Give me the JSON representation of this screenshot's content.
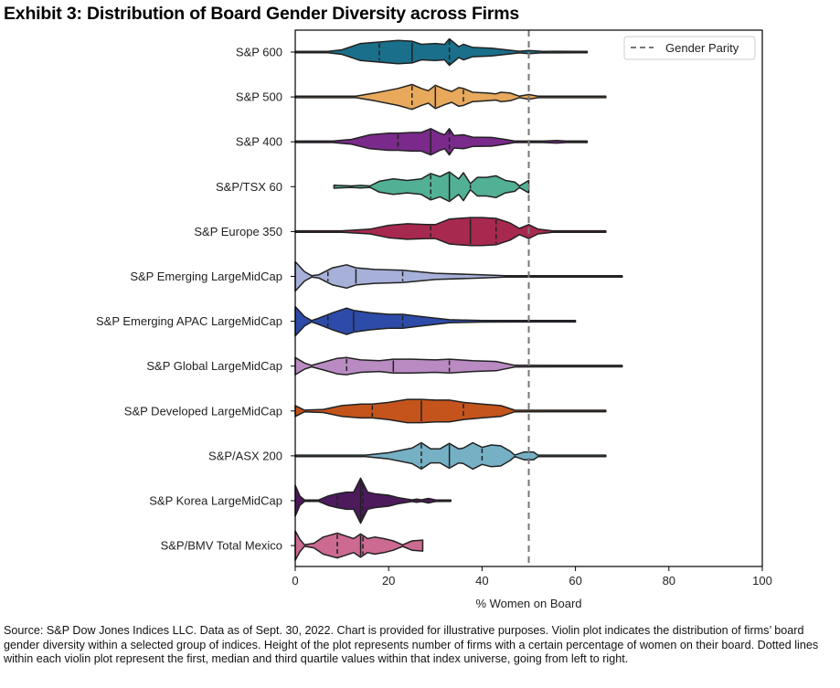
{
  "title": "Exhibit 3: Distribution of Board Gender Diversity across Firms",
  "caption": "Source: S&P Dow Jones Indices LLC. Data as of Sept. 30, 2022. Chart is provided for illustrative purposes. Violin plot indicates the distribution of firms’ board gender diversity within a selected group of indices. Height of the plot represents number of firms with a certain percentage of women on their board. Dotted lines within each violin plot represent the first, median and third quartile values within that index universe, going from left to right.",
  "chart_data": {
    "type": "violin",
    "title": "Exhibit 3: Distribution of Board Gender Diversity across Firms",
    "xlabel": "% Women on Board",
    "ylabel": "",
    "xlim": [
      0,
      100
    ],
    "xticks": [
      0,
      20,
      40,
      60,
      80,
      100
    ],
    "grid": false,
    "legend": {
      "position": "top-right",
      "entries": [
        {
          "label": "Gender Parity",
          "style": "dashed",
          "color": "#777777"
        }
      ]
    },
    "reference_line": {
      "label": "Gender Parity",
      "x": 50,
      "color": "#777777",
      "style": "dashed"
    },
    "series": [
      {
        "name": "S&P 600",
        "color": "#1a6f8a",
        "min": 0,
        "max": 62.5,
        "quartiles": [
          18,
          25,
          33
        ],
        "density": [
          [
            0,
            0.02
          ],
          [
            7,
            0.04
          ],
          [
            10,
            0.15
          ],
          [
            14,
            0.55
          ],
          [
            18,
            0.65
          ],
          [
            22,
            0.75
          ],
          [
            25,
            0.7
          ],
          [
            27,
            0.5
          ],
          [
            30,
            0.55
          ],
          [
            32,
            0.5
          ],
          [
            33,
            0.85
          ],
          [
            35,
            0.35
          ],
          [
            36,
            0.5
          ],
          [
            38,
            0.3
          ],
          [
            42,
            0.25
          ],
          [
            46,
            0.12
          ],
          [
            48,
            0.05
          ],
          [
            50,
            0.1
          ],
          [
            53,
            0.04
          ],
          [
            56,
            0.05
          ],
          [
            60,
            0.02
          ],
          [
            62.5,
            0.02
          ]
        ]
      },
      {
        "name": "S&P 500",
        "color": "#e8a95c",
        "min": 0,
        "max": 66.5,
        "quartiles": [
          25,
          30,
          36
        ],
        "density": [
          [
            0,
            0.02
          ],
          [
            13,
            0.03
          ],
          [
            17,
            0.25
          ],
          [
            22,
            0.55
          ],
          [
            25,
            0.8
          ],
          [
            27,
            0.55
          ],
          [
            28.5,
            0.4
          ],
          [
            30,
            0.75
          ],
          [
            32,
            0.5
          ],
          [
            33.5,
            0.35
          ],
          [
            35,
            0.6
          ],
          [
            36,
            0.55
          ],
          [
            38,
            0.3
          ],
          [
            41,
            0.25
          ],
          [
            43,
            0.2
          ],
          [
            44,
            0.3
          ],
          [
            46,
            0.25
          ],
          [
            48,
            0.05
          ],
          [
            50,
            0.15
          ],
          [
            52,
            0.03
          ],
          [
            66.5,
            0.02
          ]
        ]
      },
      {
        "name": "S&P 400",
        "color": "#7a2a8a",
        "min": 0,
        "max": 62.5,
        "quartiles": [
          22,
          29,
          33
        ],
        "density": [
          [
            0,
            0.02
          ],
          [
            8,
            0.04
          ],
          [
            12,
            0.15
          ],
          [
            16,
            0.45
          ],
          [
            20,
            0.55
          ],
          [
            22,
            0.55
          ],
          [
            25,
            0.6
          ],
          [
            27,
            0.6
          ],
          [
            29,
            0.85
          ],
          [
            31,
            0.55
          ],
          [
            32,
            0.45
          ],
          [
            33,
            0.85
          ],
          [
            34,
            0.4
          ],
          [
            36,
            0.45
          ],
          [
            38,
            0.3
          ],
          [
            42,
            0.28
          ],
          [
            45,
            0.15
          ],
          [
            47,
            0.03
          ],
          [
            53,
            0.04
          ],
          [
            56,
            0.08
          ],
          [
            58,
            0.02
          ],
          [
            62.5,
            0.02
          ]
        ]
      },
      {
        "name": "S&P/TSX 60",
        "color": "#52b095",
        "min": 8.3,
        "max": 50,
        "quartiles": [
          29,
          33,
          37.5
        ],
        "density": [
          [
            8.3,
            0.1
          ],
          [
            9,
            0.08
          ],
          [
            12,
            0.04
          ],
          [
            14,
            0.08
          ],
          [
            16,
            0.03
          ],
          [
            18,
            0.35
          ],
          [
            21,
            0.5
          ],
          [
            24,
            0.4
          ],
          [
            27,
            0.5
          ],
          [
            29,
            0.85
          ],
          [
            31,
            0.65
          ],
          [
            33,
            0.95
          ],
          [
            35,
            0.5
          ],
          [
            36,
            0.9
          ],
          [
            37.5,
            0.2
          ],
          [
            39,
            0.6
          ],
          [
            41,
            0.6
          ],
          [
            43,
            0.7
          ],
          [
            45,
            0.4
          ],
          [
            47,
            0.3
          ],
          [
            48,
            0.05
          ],
          [
            50,
            0.4
          ]
        ]
      },
      {
        "name": "S&P Europe 350",
        "color": "#a8294f",
        "min": 0,
        "max": 66.5,
        "quartiles": [
          29,
          37.5,
          43
        ],
        "density": [
          [
            0,
            0.02
          ],
          [
            10,
            0.04
          ],
          [
            16,
            0.15
          ],
          [
            20,
            0.4
          ],
          [
            24,
            0.5
          ],
          [
            28,
            0.45
          ],
          [
            30,
            0.45
          ],
          [
            33,
            0.8
          ],
          [
            35,
            0.85
          ],
          [
            37.5,
            0.9
          ],
          [
            40,
            0.9
          ],
          [
            43,
            0.85
          ],
          [
            46,
            0.55
          ],
          [
            48,
            0.2
          ],
          [
            50,
            0.45
          ],
          [
            52,
            0.15
          ],
          [
            55,
            0.04
          ],
          [
            66.5,
            0.02
          ]
        ]
      },
      {
        "name": "S&P Emerging LargeMidCap",
        "color": "#a6b0d8",
        "min": 0,
        "max": 70,
        "quartiles": [
          7,
          13,
          23
        ],
        "density": [
          [
            0,
            0.95
          ],
          [
            2,
            0.3
          ],
          [
            3.5,
            0.03
          ],
          [
            5,
            0.1
          ],
          [
            8,
            0.55
          ],
          [
            11,
            0.75
          ],
          [
            13,
            0.55
          ],
          [
            17,
            0.45
          ],
          [
            23,
            0.4
          ],
          [
            30,
            0.2
          ],
          [
            40,
            0.1
          ],
          [
            45,
            0.04
          ],
          [
            55,
            0.02
          ],
          [
            70,
            0.02
          ]
        ]
      },
      {
        "name": "S&P Emerging APAC LargeMidCap",
        "color": "#2d4ba8",
        "min": 0,
        "max": 60,
        "quartiles": [
          7,
          12.5,
          23
        ],
        "density": [
          [
            0,
            0.95
          ],
          [
            2,
            0.3
          ],
          [
            3.5,
            0.03
          ],
          [
            5,
            0.2
          ],
          [
            8,
            0.55
          ],
          [
            11,
            0.85
          ],
          [
            12.5,
            0.7
          ],
          [
            16,
            0.55
          ],
          [
            20,
            0.45
          ],
          [
            23,
            0.45
          ],
          [
            27,
            0.3
          ],
          [
            33,
            0.1
          ],
          [
            40,
            0.05
          ],
          [
            47,
            0.02
          ],
          [
            60,
            0.02
          ]
        ]
      },
      {
        "name": "S&P Global LargeMidCap",
        "color": "#b98bc2",
        "min": 0,
        "max": 70,
        "quartiles": [
          11,
          21,
          33
        ],
        "density": [
          [
            0,
            0.55
          ],
          [
            2,
            0.2
          ],
          [
            3.5,
            0.03
          ],
          [
            6,
            0.25
          ],
          [
            9,
            0.5
          ],
          [
            11,
            0.55
          ],
          [
            14,
            0.4
          ],
          [
            18,
            0.35
          ],
          [
            21,
            0.45
          ],
          [
            25,
            0.45
          ],
          [
            30,
            0.4
          ],
          [
            33,
            0.45
          ],
          [
            38,
            0.35
          ],
          [
            43,
            0.3
          ],
          [
            47,
            0.05
          ],
          [
            55,
            0.02
          ],
          [
            70,
            0.02
          ]
        ]
      },
      {
        "name": "S&P Developed LargeMidCap",
        "color": "#c4541c",
        "min": 0,
        "max": 66.5,
        "quartiles": [
          16.5,
          27,
          36
        ],
        "density": [
          [
            0,
            0.35
          ],
          [
            2,
            0.05
          ],
          [
            6,
            0.1
          ],
          [
            10,
            0.35
          ],
          [
            14,
            0.45
          ],
          [
            16.5,
            0.45
          ],
          [
            20,
            0.55
          ],
          [
            24,
            0.75
          ],
          [
            27,
            0.75
          ],
          [
            30,
            0.7
          ],
          [
            33,
            0.7
          ],
          [
            36,
            0.55
          ],
          [
            40,
            0.45
          ],
          [
            44,
            0.35
          ],
          [
            47,
            0.05
          ],
          [
            55,
            0.02
          ],
          [
            66.5,
            0.02
          ]
        ]
      },
      {
        "name": "S&P/ASX 200",
        "color": "#75b0c4",
        "min": 0,
        "max": 66.5,
        "quartiles": [
          27,
          33,
          40
        ],
        "density": [
          [
            0,
            0.02
          ],
          [
            15,
            0.04
          ],
          [
            20,
            0.2
          ],
          [
            25,
            0.5
          ],
          [
            27,
            0.85
          ],
          [
            29,
            0.45
          ],
          [
            31,
            0.45
          ],
          [
            33,
            0.8
          ],
          [
            35,
            0.45
          ],
          [
            36,
            0.5
          ],
          [
            38,
            0.85
          ],
          [
            40,
            0.55
          ],
          [
            42,
            0.7
          ],
          [
            44,
            0.65
          ],
          [
            46,
            0.3
          ],
          [
            47,
            0.03
          ],
          [
            49,
            0.25
          ],
          [
            51,
            0.25
          ],
          [
            52,
            0.03
          ],
          [
            60,
            0.02
          ],
          [
            66.5,
            0.02
          ]
        ]
      },
      {
        "name": "S&P Korea LargeMidCap",
        "color": "#4d1a5c",
        "min": 0,
        "max": 33.3,
        "quartiles": [
          9,
          14,
          14.5
        ],
        "density": [
          [
            0,
            1.0
          ],
          [
            1,
            0.3
          ],
          [
            2,
            0.03
          ],
          [
            5,
            0.03
          ],
          [
            7,
            0.3
          ],
          [
            9,
            0.45
          ],
          [
            11,
            0.55
          ],
          [
            12.5,
            0.55
          ],
          [
            14,
            1.45
          ],
          [
            15.5,
            0.55
          ],
          [
            17,
            0.45
          ],
          [
            20,
            0.35
          ],
          [
            22,
            0.2
          ],
          [
            25,
            0.05
          ],
          [
            26,
            0.1
          ],
          [
            27,
            0.05
          ],
          [
            28.5,
            0.15
          ],
          [
            30,
            0.05
          ],
          [
            33.3,
            0.03
          ]
        ]
      },
      {
        "name": "S&P/BMV Total Mexico",
        "color": "#cc6a92",
        "min": 0,
        "max": 27.3,
        "quartiles": [
          9,
          14,
          14.5
        ],
        "density": [
          [
            0,
            0.95
          ],
          [
            1,
            0.4
          ],
          [
            2,
            0.03
          ],
          [
            4,
            0.15
          ],
          [
            6,
            0.55
          ],
          [
            9,
            0.8
          ],
          [
            11,
            0.6
          ],
          [
            12.5,
            0.45
          ],
          [
            14,
            0.75
          ],
          [
            15.5,
            0.45
          ],
          [
            17,
            0.55
          ],
          [
            19,
            0.45
          ],
          [
            21,
            0.3
          ],
          [
            23,
            0.05
          ],
          [
            25,
            0.3
          ],
          [
            27.3,
            0.35
          ]
        ]
      }
    ]
  }
}
